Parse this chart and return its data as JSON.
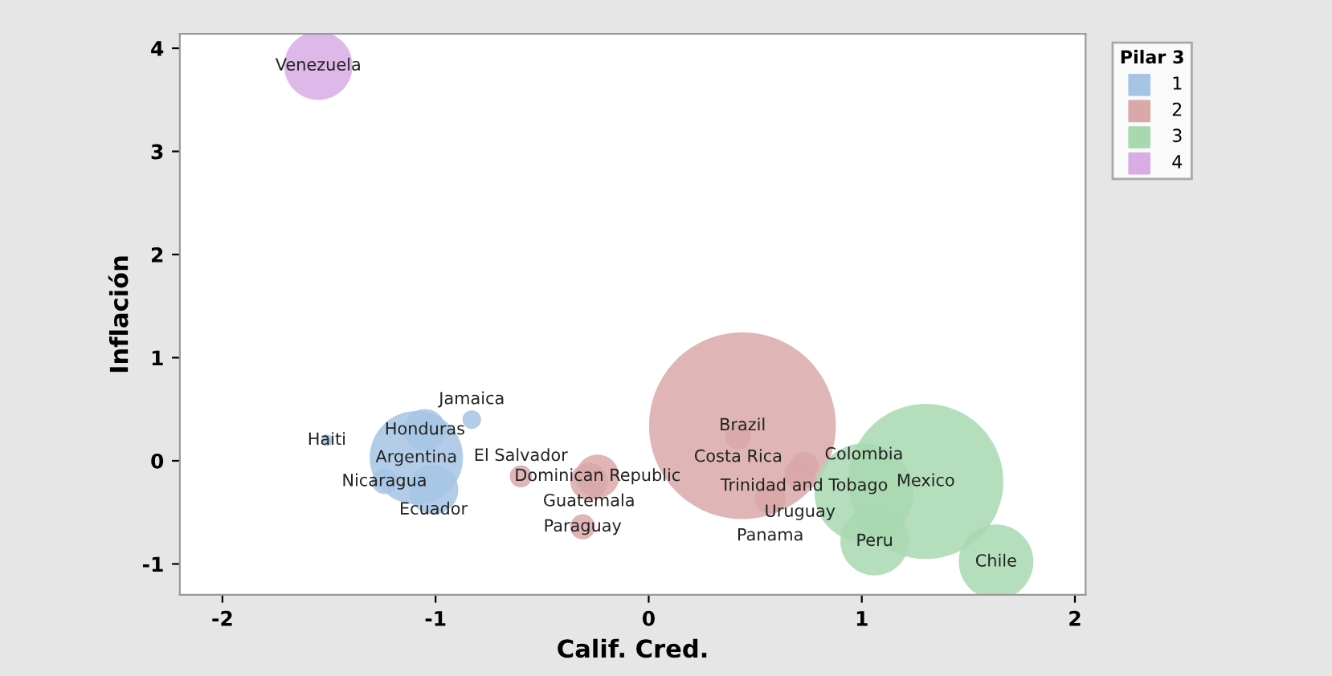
{
  "chart_data": {
    "type": "bubble",
    "xlabel": "Calif. Cred.",
    "ylabel": "Inflación",
    "legend_title": "Pilar 3",
    "legend": "top right",
    "xlim": [
      -2.2,
      2.05
    ],
    "ylim": [
      -1.3,
      4.14
    ],
    "xticks": [
      -2,
      -1,
      0,
      1,
      2
    ],
    "yticks": [
      -1,
      0,
      1,
      2,
      3,
      4
    ],
    "grid": false,
    "series": [
      {
        "name": "1",
        "color": "#a6c4e4",
        "x": [
          -1.51,
          -1.05,
          -1.09,
          -1.24,
          -1.01,
          -0.83
        ],
        "values": [
          0.2,
          0.3,
          0.03,
          -0.2,
          -0.28,
          0.4
        ],
        "sizes": [
          0.004,
          0.05,
          0.25,
          0.018,
          0.071,
          0.01
        ]
      },
      {
        "name": "2",
        "color": "#d9a8a8",
        "x": [
          -0.24,
          -0.6,
          -0.28,
          -0.31,
          0.44,
          0.42,
          0.73,
          0.71,
          0.57
        ],
        "values": [
          -0.15,
          -0.15,
          -0.2,
          -0.64,
          0.34,
          0.23,
          -0.05,
          -0.13,
          -0.36
        ],
        "sizes": [
          0.054,
          0.014,
          0.04,
          0.018,
          1,
          0.018,
          0.023,
          0.028,
          0.028
        ]
      },
      {
        "name": "3",
        "color": "#a8d8b0",
        "x": [
          1.3,
          1.01,
          1.06,
          1.63
        ],
        "values": [
          -0.2,
          -0.31,
          -0.78,
          -0.98
        ],
        "sizes": [
          0.69,
          0.28,
          0.134,
          0.16
        ]
      },
      {
        "name": "4",
        "color": "#d8ace4",
        "x": [
          -1.55
        ],
        "values": [
          3.83
        ],
        "sizes": [
          0.134
        ]
      }
    ],
    "annotations": [
      {
        "text": "Venezuela",
        "x": -1.55,
        "y": 3.83
      },
      {
        "text": "Haiti",
        "x": -1.51,
        "y": 0.2
      },
      {
        "text": "Honduras",
        "x": -1.05,
        "y": 0.3
      },
      {
        "text": "Jamaica",
        "x": -0.83,
        "y": 0.4
      },
      {
        "text": "Argentina",
        "x": -1.09,
        "y": 0.03
      },
      {
        "text": "Nicaragua",
        "x": -1.24,
        "y": -0.2
      },
      {
        "text": "Ecuador",
        "x": -1.01,
        "y": -0.28
      },
      {
        "text": "Dominican Republic",
        "x": -0.24,
        "y": -0.15
      },
      {
        "text": "El Salvador",
        "x": -0.6,
        "y": -0.15
      },
      {
        "text": "Guatemala",
        "x": -0.28,
        "y": -0.2
      },
      {
        "text": "Paraguay",
        "x": -0.31,
        "y": -0.64
      },
      {
        "text": "Brazil",
        "x": 0.44,
        "y": 0.34
      },
      {
        "text": "Costa Rica",
        "x": 0.42,
        "y": 0.23
      },
      {
        "text": "Trinidad and Tobago",
        "x": 0.73,
        "y": -0.05
      },
      {
        "text": "Uruguay",
        "x": 0.71,
        "y": -0.13
      },
      {
        "text": "Panama",
        "x": 0.57,
        "y": -0.36
      },
      {
        "text": "Colombia",
        "x": 1.01,
        "y": -0.31
      },
      {
        "text": "Mexico",
        "x": 1.3,
        "y": -0.2
      },
      {
        "text": "Peru",
        "x": 1.06,
        "y": -0.78
      },
      {
        "text": "Chile",
        "x": 1.63,
        "y": -0.98
      }
    ]
  }
}
